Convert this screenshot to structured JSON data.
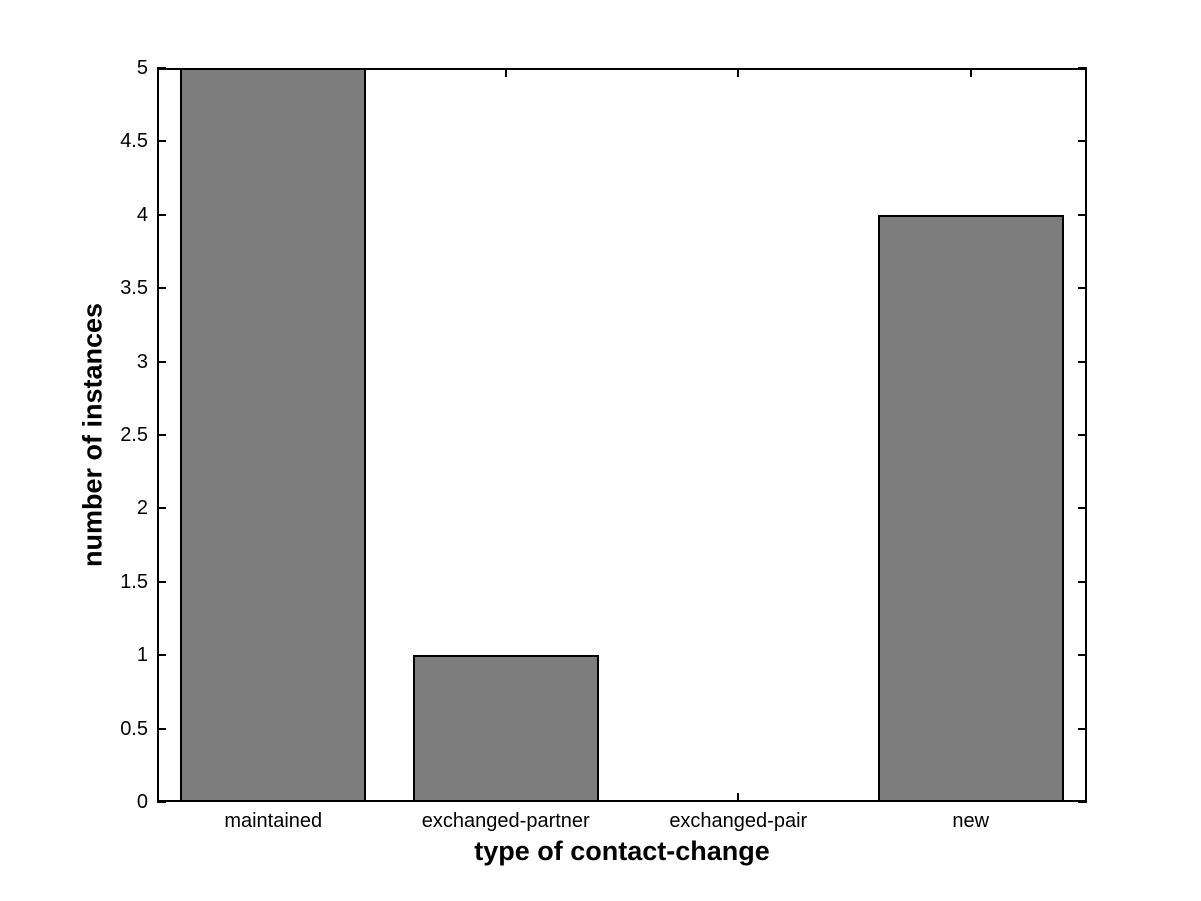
{
  "chart_data": {
    "type": "bar",
    "title": "",
    "categories": [
      "maintained",
      "exchanged-partner",
      "exchanged-pair",
      "new"
    ],
    "values": [
      5,
      1,
      0,
      4
    ],
    "xlabel": "type of contact-change",
    "ylabel": "number of instances",
    "ylim": [
      0,
      5
    ],
    "yticks": [
      0,
      0.5,
      1,
      1.5,
      2,
      2.5,
      3,
      3.5,
      4,
      4.5,
      5
    ],
    "ytick_labels": [
      "0",
      "0.5",
      "1",
      "1.5",
      "2",
      "2.5",
      "3",
      "3.5",
      "4",
      "4.5",
      "5"
    ],
    "bar_width_fraction": 0.8,
    "bar_color": "#7d7d7d",
    "bar_edge_color": "#000000",
    "axis_color": "#000000",
    "background_color": "#ffffff",
    "grid": false,
    "legend": null,
    "tick_direction": "in",
    "box": true
  }
}
